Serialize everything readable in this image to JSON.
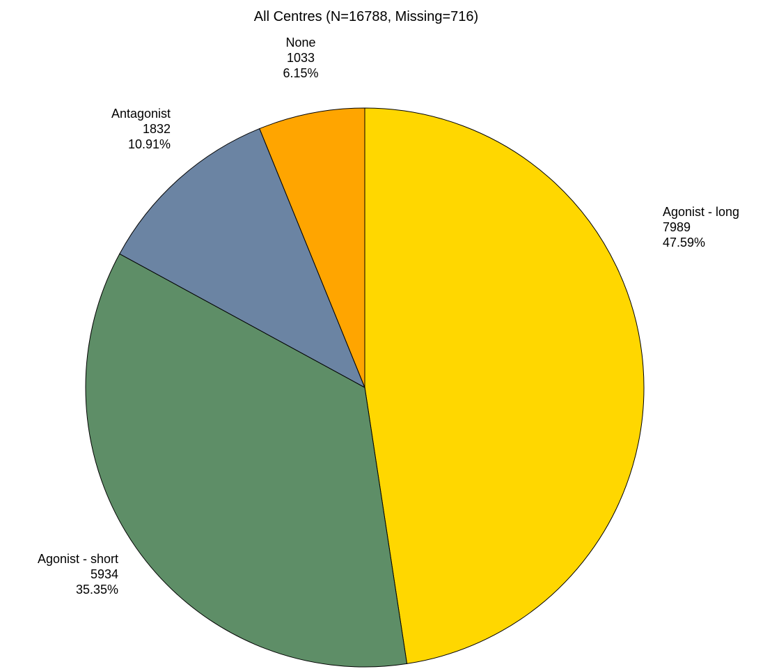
{
  "chart_data": {
    "type": "pie",
    "title": "All Centres  (N=16788, Missing=716)",
    "start": "12 o'clock",
    "direction": "clockwise",
    "slices": [
      {
        "key": "agonist-long",
        "label": "Agonist - long",
        "value": 7989,
        "percent": "47.59%",
        "color": "#FFD700"
      },
      {
        "key": "agonist-short",
        "label": "Agonist - short",
        "value": 5934,
        "percent": "35.35%",
        "color": "#5E8E67"
      },
      {
        "key": "antagonist",
        "label": "Antagonist",
        "value": 1832,
        "percent": "10.91%",
        "color": "#6B84A3"
      },
      {
        "key": "none",
        "label": "None",
        "value": 1033,
        "percent": "6.15%",
        "color": "#FFA500"
      }
    ]
  }
}
